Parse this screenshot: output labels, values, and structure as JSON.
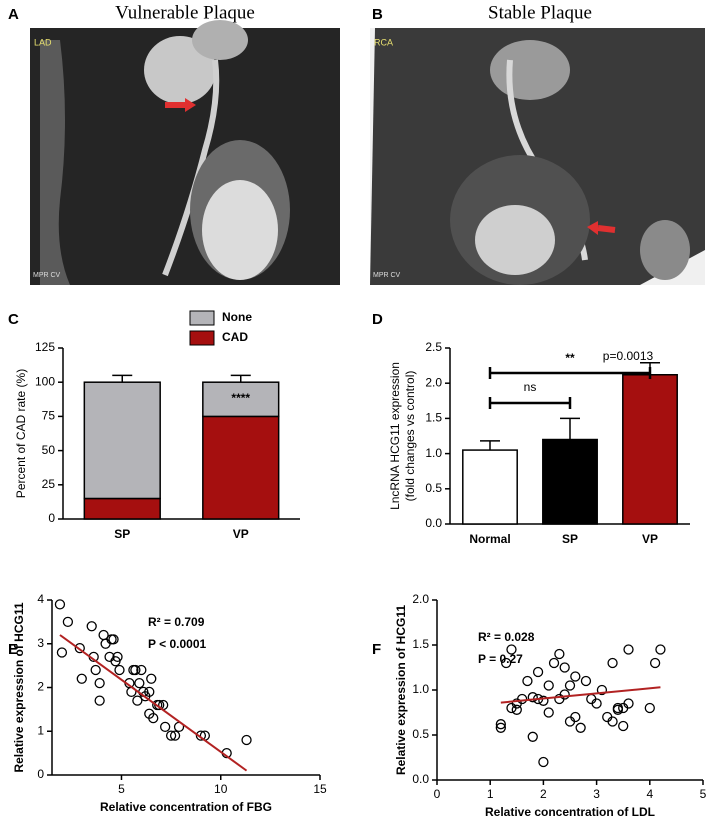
{
  "images": [
    {
      "panel": "A",
      "title": "Vulnerable Plaque",
      "vessel": "LAD",
      "mode": "MPR CV"
    },
    {
      "panel": "B",
      "title": "Stable Plaque",
      "vessel": "RCA",
      "mode": "MPR CV"
    }
  ],
  "chart_data": [
    {
      "type": "stacked_bar",
      "panel": "C",
      "ylabel": "Percent of CAD rate (%)",
      "categories": [
        "SP",
        "VP"
      ],
      "series": [
        {
          "name": "CAD",
          "color": "#a50f0f",
          "values": [
            15,
            75
          ],
          "errors": [
            5,
            5
          ]
        },
        {
          "name": "None",
          "color": "#b4b4b8",
          "values": [
            85,
            25
          ],
          "errors": [
            5,
            5
          ]
        }
      ],
      "ylim": [
        0,
        125
      ],
      "yticks": [
        0,
        25,
        50,
        75,
        100,
        125
      ],
      "annotations": [
        "****"
      ]
    },
    {
      "type": "bar",
      "panel": "D",
      "ylabel": [
        "LncRNA HCG11 expression",
        "(fold changes vs control)"
      ],
      "categories": [
        "Normal",
        "SP",
        "VP"
      ],
      "values": [
        1.05,
        1.2,
        2.12
      ],
      "errors": [
        0.13,
        0.3,
        0.17
      ],
      "colors": [
        "#ffffff",
        "#000000",
        "#a50f0f"
      ],
      "ylim": [
        0,
        2.5
      ],
      "yticks": [
        {
          "value": 0,
          "label": "0.0"
        },
        {
          "value": 0.5,
          "label": "0.5"
        },
        {
          "value": 1,
          "label": "1.0"
        },
        {
          "value": 1.5,
          "label": "1.5"
        },
        {
          "value": 2,
          "label": "2.0"
        },
        {
          "value": 2.5,
          "label": "2.5"
        }
      ],
      "annotations": [
        "ns",
        "**",
        "p=0.0013"
      ]
    },
    {
      "type": "scatter",
      "panel": "E",
      "xlabel": "Relative concentration of FBG",
      "ylabel": "Relative expression of HCG11",
      "x": [
        1.9,
        2.0,
        2.3,
        2.9,
        3.0,
        3.5,
        3.6,
        3.7,
        3.9,
        3.9,
        4.1,
        4.2,
        4.4,
        4.5,
        4.6,
        4.7,
        4.8,
        4.9,
        5.4,
        5.5,
        5.6,
        5.7,
        5.8,
        5.9,
        6.0,
        6.1,
        6.2,
        6.4,
        6.4,
        6.5,
        6.6,
        6.8,
        6.9,
        7.1,
        7.2,
        7.5,
        7.7,
        7.9,
        9.0,
        9.2,
        10.3,
        11.3
      ],
      "y": [
        3.9,
        2.8,
        3.5,
        2.9,
        2.2,
        3.4,
        2.7,
        2.4,
        2.1,
        1.7,
        3.2,
        3.0,
        2.7,
        3.1,
        3.1,
        2.6,
        2.7,
        2.4,
        2.1,
        1.9,
        2.4,
        2.4,
        1.7,
        2.1,
        2.4,
        1.9,
        1.8,
        1.4,
        1.9,
        2.2,
        1.3,
        1.6,
        1.6,
        1.6,
        1.1,
        0.9,
        0.9,
        1.1,
        0.9,
        0.9,
        0.5,
        0.8
      ],
      "fit": {
        "x": [
          1.9,
          11.3
        ],
        "y": [
          3.2,
          0.1
        ]
      },
      "fit_color": "#b22222",
      "xlim": [
        1.5,
        15
      ],
      "xticks": [
        5,
        10,
        15
      ],
      "ylim": [
        0,
        4
      ],
      "yticks": [
        0,
        1,
        2,
        3,
        4
      ],
      "annotations": [
        "R² = 0.709",
        "P < 0.0001"
      ]
    },
    {
      "type": "scatter",
      "panel": "F",
      "xlabel": "Relative concentration of LDL",
      "ylabel": "Relative expression of HCG11",
      "x": [
        1.2,
        1.2,
        1.3,
        1.4,
        1.4,
        1.5,
        1.5,
        1.6,
        1.7,
        1.8,
        1.8,
        1.9,
        1.9,
        2.0,
        2.0,
        2.1,
        2.1,
        2.2,
        2.3,
        2.3,
        2.4,
        2.4,
        2.5,
        2.5,
        2.6,
        2.6,
        2.7,
        2.8,
        2.9,
        3.0,
        3.1,
        3.2,
        3.3,
        3.3,
        3.4,
        3.4,
        3.5,
        3.5,
        3.6,
        3.6,
        4.0,
        4.1,
        4.2
      ],
      "y": [
        0.62,
        0.58,
        1.3,
        0.8,
        1.45,
        0.78,
        0.85,
        0.9,
        1.1,
        0.48,
        0.92,
        1.2,
        0.9,
        0.2,
        0.88,
        1.05,
        0.75,
        1.3,
        0.9,
        1.4,
        1.25,
        0.95,
        0.65,
        1.05,
        0.7,
        1.15,
        0.58,
        1.1,
        0.9,
        0.85,
        1.0,
        0.7,
        0.65,
        1.3,
        0.8,
        0.78,
        0.6,
        0.8,
        1.45,
        0.85,
        0.8,
        1.3,
        1.45
      ],
      "fit": {
        "x": [
          1.2,
          4.2
        ],
        "y": [
          0.86,
          1.03
        ]
      },
      "fit_color": "#b22222",
      "xlim": [
        0,
        5
      ],
      "xticks": [
        0,
        1,
        2,
        3,
        4,
        5
      ],
      "ylim": [
        0,
        2
      ],
      "yticks": [
        {
          "value": 0,
          "label": "0.0"
        },
        {
          "value": 0.5,
          "label": "0.5"
        },
        {
          "value": 1,
          "label": "1.0"
        },
        {
          "value": 1.5,
          "label": "1.5"
        },
        {
          "value": 2,
          "label": "2.0"
        }
      ],
      "annotations": [
        "R² = 0.028",
        "P = 0.27"
      ]
    }
  ]
}
